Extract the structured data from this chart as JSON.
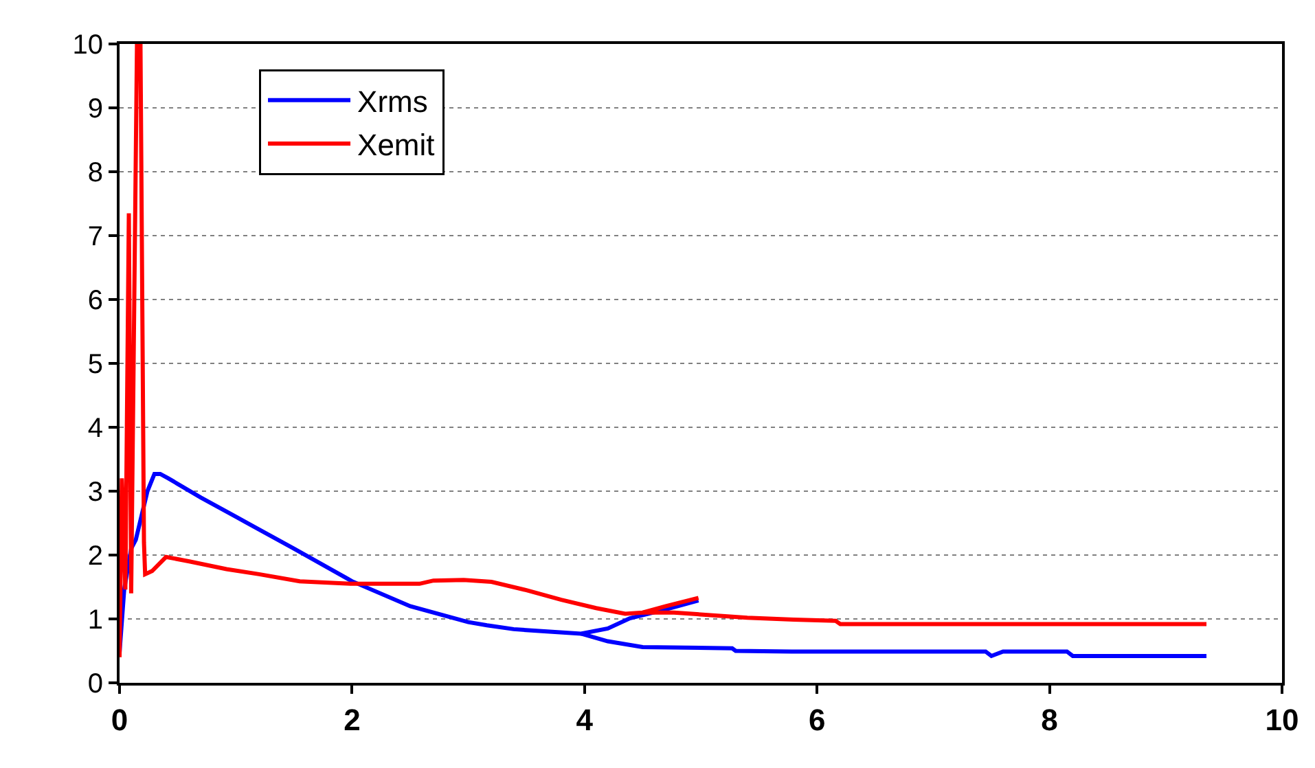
{
  "chart_data": {
    "type": "line",
    "xlim": [
      0,
      10
    ],
    "ylim": [
      0,
      10
    ],
    "xticks": [
      0,
      2,
      4,
      6,
      8,
      10
    ],
    "yticks": [
      0,
      1,
      2,
      3,
      4,
      5,
      6,
      7,
      8,
      9,
      10
    ],
    "grid": "y",
    "legend": "top left",
    "line_style": "solid",
    "marker": "none",
    "series": [
      {
        "name": "Xrms",
        "color": "#0000ff",
        "x": [
          0,
          0.04,
          0.1,
          0.14,
          0.24,
          0.3,
          0.35,
          0.42,
          0.7,
          1.0,
          1.5,
          2.0,
          2.5,
          3.0,
          3.16,
          3.39,
          3.7,
          3.97,
          4.2,
          4.39,
          4.7,
          4.98,
          null,
          3.97,
          4.2,
          4.5,
          5.27,
          5.3,
          5.78,
          6.5,
          7.45,
          7.5,
          7.6,
          8.15,
          8.2,
          9.35
        ],
        "values": [
          0.47,
          1.46,
          2.1,
          2.24,
          3.0,
          3.27,
          3.27,
          3.2,
          2.9,
          2.6,
          2.1,
          1.59,
          1.2,
          0.95,
          0.9,
          0.84,
          0.8,
          0.77,
          0.85,
          1.01,
          1.15,
          1.29,
          null,
          0.77,
          0.65,
          0.56,
          0.54,
          0.5,
          0.49,
          0.49,
          0.49,
          0.42,
          0.49,
          0.49,
          0.42,
          0.42
        ]
      },
      {
        "name": "Xemit",
        "color": "#ff0000",
        "x": [
          0,
          0.02,
          0.05,
          0.08,
          0.1,
          0.15,
          0.18,
          0.21,
          0.22,
          0.28,
          0.4,
          0.6,
          0.92,
          1.2,
          1.55,
          2.0,
          2.58,
          2.7,
          2.96,
          3.2,
          3.5,
          3.8,
          4.1,
          4.35,
          4.5,
          4.7,
          4.98,
          null,
          4.5,
          4.77,
          5.4,
          5.8,
          6.16,
          6.2,
          9.35
        ],
        "values": [
          0.4,
          3.2,
          1.46,
          7.35,
          1.4,
          10,
          10,
          2.2,
          1.7,
          1.75,
          1.97,
          1.9,
          1.78,
          1.7,
          1.59,
          1.55,
          1.55,
          1.6,
          1.61,
          1.58,
          1.45,
          1.3,
          1.17,
          1.08,
          1.1,
          1.2,
          1.33,
          null,
          1.1,
          1.1,
          1.02,
          0.99,
          0.97,
          0.92,
          0.92
        ]
      }
    ]
  }
}
